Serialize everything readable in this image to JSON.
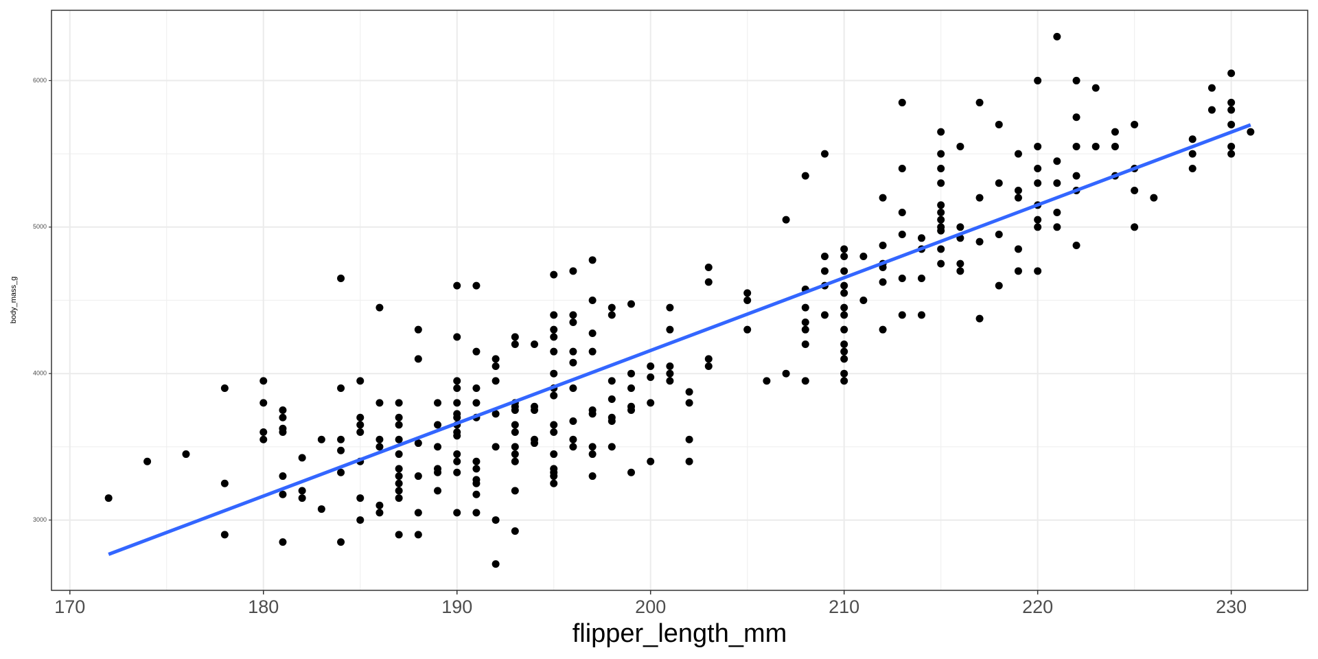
{
  "chart_data": {
    "type": "scatter",
    "x_label": "flipper_length_mm",
    "y_label": "body_mass_g",
    "color": "#000000",
    "x": [
      172,
      174,
      176,
      178,
      178,
      178,
      180,
      180,
      180,
      180,
      181,
      181,
      181,
      181,
      181,
      181,
      181,
      182,
      182,
      182,
      183,
      183,
      184,
      184,
      184,
      184,
      184,
      184,
      185,
      185,
      185,
      185,
      185,
      185,
      185,
      186,
      186,
      186,
      186,
      186,
      186,
      187,
      187,
      187,
      187,
      187,
      187,
      187,
      187,
      187,
      187,
      187,
      188,
      188,
      188,
      188,
      188,
      188,
      189,
      189,
      189,
      189,
      189,
      189,
      190,
      190,
      190,
      190,
      190,
      190,
      190,
      190,
      190,
      190,
      190,
      190,
      190,
      190,
      191,
      191,
      191,
      191,
      191,
      191,
      191,
      191,
      191,
      191,
      191,
      192,
      192,
      192,
      192,
      192,
      192,
      192,
      193,
      193,
      193,
      193,
      193,
      193,
      193,
      193,
      193,
      193,
      193,
      193,
      194,
      194,
      194,
      194,
      194,
      195,
      195,
      195,
      195,
      195,
      195,
      195,
      195,
      195,
      195,
      195,
      195,
      195,
      195,
      195,
      196,
      196,
      196,
      196,
      196,
      196,
      196,
      196,
      196,
      197,
      197,
      197,
      197,
      197,
      197,
      197,
      197,
      197,
      198,
      198,
      198,
      198,
      198,
      198,
      198,
      199,
      199,
      199,
      199,
      199,
      199,
      200,
      200,
      200,
      200,
      201,
      201,
      201,
      201,
      201,
      202,
      202,
      202,
      202,
      203,
      203,
      203,
      203,
      205,
      205,
      205,
      206,
      207,
      207,
      208,
      208,
      208,
      208,
      208,
      208,
      208,
      209,
      209,
      209,
      209,
      209,
      210,
      210,
      210,
      210,
      210,
      210,
      210,
      210,
      210,
      210,
      210,
      210,
      210,
      211,
      211,
      212,
      212,
      212,
      212,
      212,
      212,
      213,
      213,
      213,
      213,
      213,
      213,
      214,
      214,
      214,
      214,
      215,
      215,
      215,
      215,
      215,
      215,
      215,
      215,
      215,
      215,
      215,
      216,
      216,
      216,
      216,
      216,
      217,
      217,
      217,
      217,
      218,
      218,
      218,
      218,
      219,
      219,
      219,
      219,
      219,
      220,
      220,
      220,
      220,
      220,
      220,
      220,
      220,
      221,
      221,
      221,
      221,
      221,
      222,
      222,
      222,
      222,
      222,
      222,
      223,
      223,
      224,
      224,
      224,
      225,
      225,
      225,
      225,
      226,
      228,
      228,
      228,
      229,
      229,
      230,
      230,
      230,
      230,
      230,
      230,
      231
    ],
    "values": [
      3150,
      3400,
      3450,
      3900,
      3250,
      2900,
      3950,
      3800,
      3600,
      3550,
      3750,
      3700,
      3625,
      3600,
      3300,
      3175,
      2850,
      3425,
      3200,
      3150,
      3550,
      3075,
      4650,
      3900,
      3550,
      3475,
      3325,
      2850,
      3950,
      3700,
      3650,
      3600,
      3400,
      3150,
      3000,
      4450,
      3800,
      3550,
      3500,
      3100,
      3050,
      3800,
      3700,
      3650,
      3550,
      3450,
      3350,
      3300,
      3250,
      3200,
      3150,
      2900,
      4300,
      4100,
      3525,
      3300,
      3050,
      2900,
      3800,
      3650,
      3500,
      3350,
      3325,
      3200,
      4600,
      4250,
      3950,
      3900,
      3800,
      3725,
      3700,
      3650,
      3600,
      3575,
      3450,
      3400,
      3325,
      3050,
      4600,
      4150,
      3900,
      3800,
      3700,
      3400,
      3350,
      3275,
      3250,
      3175,
      3050,
      4100,
      4050,
      3950,
      3725,
      3500,
      3000,
      2700,
      4250,
      4200,
      3800,
      3775,
      3750,
      3650,
      3600,
      3500,
      3450,
      3400,
      3200,
      2925,
      4200,
      3775,
      3750,
      3550,
      3525,
      4675,
      4400,
      4300,
      4250,
      4150,
      4000,
      3900,
      3850,
      3650,
      3600,
      3450,
      3350,
      3325,
      3300,
      3250,
      4700,
      4400,
      4350,
      4150,
      4075,
      3900,
      3675,
      3550,
      3500,
      4775,
      4500,
      4275,
      4150,
      3750,
      3725,
      3500,
      3450,
      3300,
      4450,
      4400,
      3950,
      3825,
      3700,
      3675,
      3500,
      4475,
      4000,
      3900,
      3775,
      3750,
      3325,
      4050,
      3975,
      3800,
      3400,
      4450,
      4300,
      4050,
      4000,
      3950,
      3875,
      3800,
      3550,
      3400,
      4725,
      4625,
      4100,
      4050,
      4550,
      4500,
      4300,
      3950,
      5050,
      4000,
      5350,
      4575,
      4450,
      4350,
      4300,
      4200,
      3950,
      5500,
      4800,
      4700,
      4600,
      4400,
      4850,
      4800,
      4700,
      4600,
      4550,
      4450,
      4400,
      4300,
      4200,
      4150,
      4100,
      4000,
      3950,
      4800,
      4500,
      5200,
      4875,
      4750,
      4725,
      4625,
      4300,
      5850,
      5400,
      5100,
      4950,
      4650,
      4400,
      4925,
      4850,
      4650,
      4400,
      5650,
      5500,
      5400,
      5300,
      5150,
      5100,
      5050,
      5000,
      4975,
      4850,
      4750,
      5550,
      5000,
      4925,
      4750,
      4700,
      5850,
      5200,
      4900,
      4375,
      5700,
      5300,
      4950,
      4600,
      5500,
      5250,
      5200,
      4850,
      4700,
      6000,
      5550,
      5400,
      5300,
      5150,
      5050,
      5000,
      4700,
      6300,
      5450,
      5300,
      5100,
      5000,
      6000,
      5750,
      5550,
      5350,
      5250,
      4875,
      5950,
      5550,
      5650,
      5550,
      5350,
      5700,
      5400,
      5250,
      5000,
      5200,
      5600,
      5500,
      5400,
      5950,
      5800,
      6050,
      5850,
      5800,
      5700,
      5550,
      5500,
      5650
    ],
    "fit": {
      "x": [
        172,
        231
      ],
      "values": [
        2766,
        5698
      ],
      "color": "#3366ff"
    },
    "xlim": [
      169.05,
      233.95
    ],
    "ylim": [
      2520,
      6480
    ],
    "xticks": [
      170,
      180,
      190,
      200,
      210,
      220,
      230
    ],
    "yticks": [
      3000,
      4000,
      5000,
      6000
    ],
    "minor_xticks": [
      175,
      185,
      195,
      205,
      215,
      225
    ],
    "minor_yticks": [
      3500,
      4500,
      5500
    ],
    "grid": true
  }
}
